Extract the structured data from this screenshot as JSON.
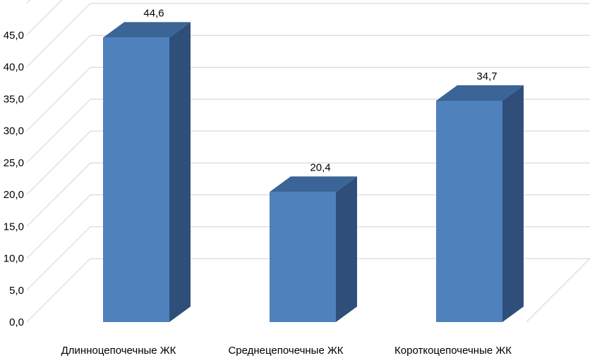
{
  "chart_data": {
    "type": "bar",
    "style": "3d-column",
    "categories": [
      "Длинноцепочечные ЖК",
      "Среднецепочечные ЖК",
      "Короткоцепочечные ЖК"
    ],
    "values": [
      44.6,
      20.4,
      34.7
    ],
    "data_labels": [
      "44,6",
      "20,4",
      "34,7"
    ],
    "ylim": [
      0,
      50
    ],
    "yticks": [
      "0,0",
      "5,0",
      "10,0",
      "15,0",
      "20,0",
      "25,0",
      "30,0",
      "35,0",
      "40,0",
      "45,0"
    ],
    "grid": true,
    "legend": "none",
    "colors": {
      "front": "#4f81bd",
      "side": "#2f4f7a",
      "top": "#3b6497",
      "grid": "#d9d9d9"
    },
    "title": "",
    "xlabel": "",
    "ylabel": ""
  }
}
